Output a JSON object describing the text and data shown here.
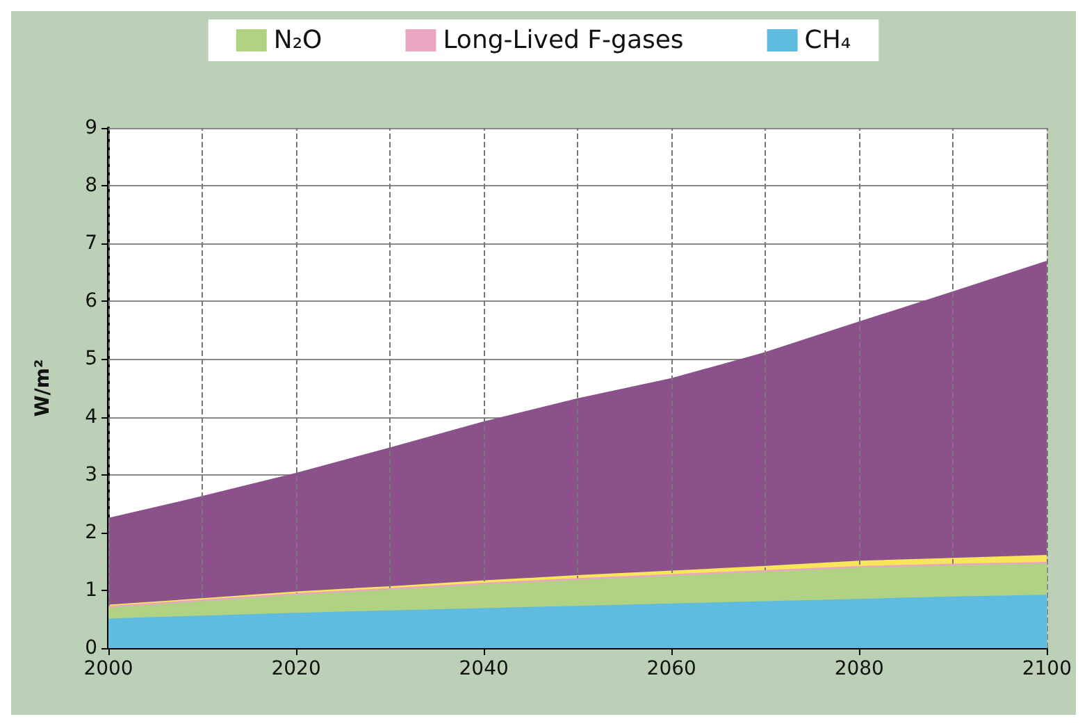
{
  "chart_data": {
    "type": "area",
    "ylabel": "W/m²",
    "stacked": true,
    "x": [
      2000,
      2010,
      2020,
      2030,
      2040,
      2050,
      2060,
      2070,
      2080,
      2090,
      2100
    ],
    "series": [
      {
        "name": "CH₄",
        "color": "#5fbbe0",
        "values": [
          0.5,
          0.55,
          0.6,
          0.64,
          0.68,
          0.72,
          0.76,
          0.8,
          0.84,
          0.88,
          0.91
        ]
      },
      {
        "name": "N₂O",
        "color": "#afd283",
        "values": [
          0.19,
          0.25,
          0.31,
          0.36,
          0.41,
          0.45,
          0.48,
          0.51,
          0.54,
          0.54,
          0.54
        ]
      },
      {
        "name": "Long-Lived F-gases",
        "color": "#e9a6c2",
        "values": [
          0.03,
          0.03,
          0.03,
          0.03,
          0.03,
          0.03,
          0.03,
          0.03,
          0.03,
          0.03,
          0.03
        ]
      },
      {
        "color": "#f7e65a",
        "values": [
          0.02,
          0.02,
          0.03,
          0.03,
          0.04,
          0.05,
          0.06,
          0.07,
          0.09,
          0.1,
          0.12
        ]
      },
      {
        "color": "#8a518b",
        "values": [
          1.5,
          1.77,
          2.05,
          2.4,
          2.75,
          3.06,
          3.33,
          3.7,
          4.14,
          4.61,
          5.09
        ]
      }
    ],
    "xlim": [
      2000,
      2100
    ],
    "xticks": [
      2000,
      {
        "value": 2010,
        "label": null
      },
      2020,
      {
        "value": 2030,
        "label": null
      },
      2040,
      {
        "value": 2050,
        "label": null
      },
      2060,
      {
        "value": 2070,
        "label": null
      },
      2080,
      {
        "value": 2090,
        "label": null
      },
      2100
    ],
    "ylim": [
      0,
      9
    ],
    "yticks": [
      0,
      1,
      2,
      3,
      4,
      5,
      6,
      7,
      8,
      9
    ],
    "grid": true,
    "legend": "top",
    "marker": "none"
  }
}
